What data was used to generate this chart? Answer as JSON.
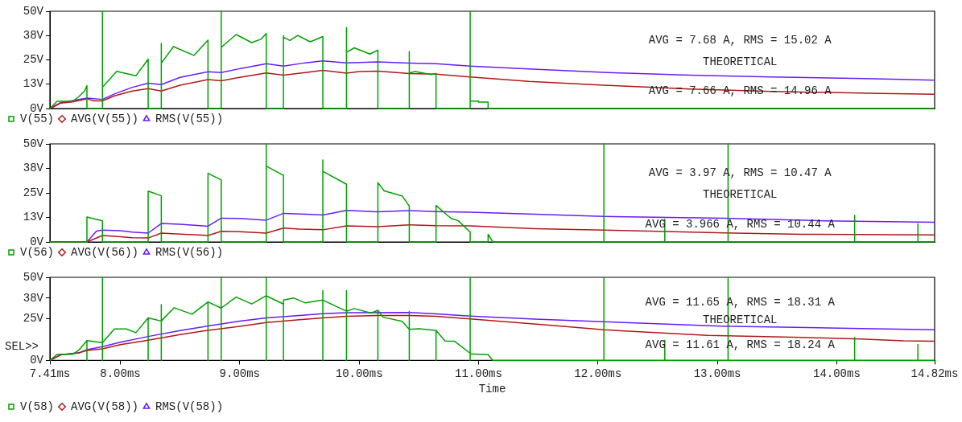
{
  "chart_data": [
    {
      "type": "line",
      "xlim": [
        7.41,
        14.82
      ],
      "ylim": [
        0,
        50
      ],
      "yticks": [
        {
          "value": 0,
          "label": "0V"
        },
        {
          "value": 12.5,
          "label": "13V"
        },
        {
          "value": 25,
          "label": "25V"
        },
        {
          "value": 37.5,
          "label": "38V"
        },
        {
          "value": 50,
          "label": "50V"
        }
      ],
      "tick_labels": "y",
      "grid": false,
      "legend": "bottom",
      "marker": "none",
      "annotations": [
        "AVG = 7.68 A, RMS = 15.02 A",
        "THEORETICAL",
        "AVG = 7.66 A, RMS = 14.96 A"
      ],
      "series": [
        {
          "name": "V(55)",
          "color": "#00a000",
          "x": [
            7.41,
            7.47,
            7.6,
            7.65,
            7.7,
            7.72,
            7.72,
            7.85,
            7.85,
            7.85,
            7.97,
            8.13,
            8.233,
            8.233,
            8.343,
            8.343,
            8.343,
            8.445,
            8.615,
            8.734,
            8.734,
            8.845,
            8.845,
            8.845,
            8.97,
            9.1,
            9.18,
            9.222,
            9.222,
            9.366,
            9.366,
            9.366,
            9.42,
            9.485,
            9.59,
            9.696,
            9.696,
            9.894,
            9.894,
            9.894,
            9.96,
            10.09,
            10.157,
            10.157,
            10.42,
            10.42,
            10.42,
            10.47,
            10.6,
            10.644,
            10.644,
            10.93,
            10.93,
            10.93,
            11.0,
            11.0,
            11.08,
            11.08,
            14.82
          ],
          "values": [
            0,
            3.7,
            3.7,
            6,
            9,
            11.8,
            0,
            0,
            50,
            10.9,
            19.1,
            16.8,
            25.3,
            0,
            0,
            33.5,
            23.3,
            31.8,
            27.3,
            35.1,
            0,
            0,
            50,
            31.5,
            38,
            33.9,
            35.7,
            38.5,
            0,
            0,
            37.5,
            36.7,
            35,
            37.6,
            34.3,
            37,
            0,
            0,
            41.6,
            28.9,
            31.2,
            28,
            30,
            0,
            0,
            29.2,
            18.3,
            19,
            17.5,
            18,
            0,
            0,
            50,
            3.8,
            3.8,
            3.3,
            3.3,
            0,
            0
          ]
        },
        {
          "name": "AVG(V(55))",
          "color": "#b01818",
          "x": [
            7.41,
            7.5,
            7.6,
            7.72,
            7.78,
            7.85,
            7.95,
            8.1,
            8.233,
            8.343,
            8.5,
            8.734,
            8.845,
            9.0,
            9.222,
            9.366,
            9.55,
            9.696,
            9.894,
            10.0,
            10.157,
            10.42,
            10.644,
            10.93,
            11.42,
            12.08,
            12.77,
            13.45,
            14.37,
            14.82
          ],
          "values": [
            0,
            2.8,
            3.4,
            5,
            3.9,
            3.9,
            6.5,
            9,
            10.2,
            9,
            12,
            14.9,
            14.3,
            16,
            18.3,
            17.1,
            18.5,
            19.6,
            18.2,
            19,
            19.2,
            18,
            17.7,
            16.2,
            13.9,
            11.9,
            10,
            8.8,
            7.7,
            7.3
          ]
        },
        {
          "name": "RMS(V(55))",
          "color": "#6a1aff",
          "x": [
            7.41,
            7.5,
            7.72,
            7.85,
            7.95,
            8.1,
            8.233,
            8.343,
            8.5,
            8.734,
            8.845,
            9.0,
            9.222,
            9.366,
            9.55,
            9.696,
            9.894,
            10.157,
            10.42,
            10.644,
            10.93,
            11.42,
            12.08,
            12.77,
            13.45,
            14.24,
            14.82
          ],
          "values": [
            0,
            3,
            5.4,
            4.7,
            7.5,
            10.9,
            13,
            12.3,
            16,
            18.9,
            18.5,
            20.5,
            23,
            21.8,
            23.5,
            24.5,
            23.5,
            24,
            23.3,
            23,
            21.8,
            20.3,
            18.5,
            17.2,
            16.2,
            15.4,
            14.6
          ]
        }
      ]
    },
    {
      "type": "line",
      "xlim": [
        7.41,
        14.82
      ],
      "ylim": [
        0,
        50
      ],
      "yticks": [
        {
          "value": 0,
          "label": "0V"
        },
        {
          "value": 12.5,
          "label": "13V"
        },
        {
          "value": 25,
          "label": "25V"
        },
        {
          "value": 37.5,
          "label": "38V"
        },
        {
          "value": 50,
          "label": "50V"
        }
      ],
      "tick_labels": "y",
      "grid": false,
      "legend": "bottom",
      "marker": "none",
      "annotations": [
        "AVG = 3.97 A, RMS = 10.47 A",
        "THEORETICAL",
        "AVG = 3.966 A, RMS = 10.44 A"
      ],
      "series": [
        {
          "name": "V(56)",
          "color": "#00a000",
          "x": [
            7.41,
            7.72,
            7.72,
            7.85,
            7.85,
            8.233,
            8.233,
            8.343,
            8.343,
            8.734,
            8.734,
            8.845,
            8.845,
            9.222,
            9.222,
            9.222,
            9.366,
            9.366,
            9.696,
            9.696,
            9.696,
            9.894,
            9.894,
            10.157,
            10.157,
            10.21,
            10.36,
            10.42,
            10.42,
            10.644,
            10.644,
            10.77,
            10.83,
            10.93,
            10.93,
            11.08,
            11.08,
            11.12,
            12.05,
            12.05,
            12.05,
            12.56,
            12.56,
            12.56,
            13.09,
            13.09,
            13.09,
            14.15,
            14.15,
            14.15,
            14.68,
            14.68,
            14.68,
            14.82
          ],
          "values": [
            0,
            0,
            12.7,
            10.8,
            0,
            0,
            25.9,
            23.5,
            0,
            0,
            35,
            31.6,
            0,
            0,
            50,
            38.7,
            34,
            0,
            0,
            41.8,
            36,
            29.4,
            0,
            0,
            30.2,
            26,
            23.5,
            18.3,
            0,
            0,
            18.6,
            12,
            10.8,
            5,
            0,
            0,
            3.9,
            0,
            0,
            50,
            0,
            0,
            11.6,
            0,
            0,
            50,
            0,
            0,
            13.6,
            0,
            0,
            9.3,
            0,
            0
          ]
        },
        {
          "name": "AVG(V(56))",
          "color": "#b01818",
          "x": [
            7.41,
            7.72,
            7.85,
            8.0,
            8.1,
            8.233,
            8.343,
            8.5,
            8.734,
            8.845,
            9.0,
            9.222,
            9.366,
            9.5,
            9.696,
            9.894,
            10.157,
            10.42,
            10.644,
            10.93,
            11.47,
            12.13,
            13.06,
            13.71,
            14.82
          ],
          "values": [
            0,
            0,
            3.3,
            2.7,
            2.2,
            2,
            4.5,
            4,
            3.3,
            5.4,
            5.2,
            4.5,
            7.1,
            6.6,
            6.2,
            8.2,
            7.8,
            8.7,
            8.3,
            8.2,
            6.8,
            5.9,
            4.6,
            3.9,
            3.6
          ]
        },
        {
          "name": "RMS(V(56))",
          "color": "#6a1aff",
          "x": [
            7.41,
            7.72,
            7.8,
            7.85,
            8.0,
            8.1,
            8.233,
            8.343,
            8.5,
            8.734,
            8.845,
            9.0,
            9.222,
            9.366,
            9.6,
            9.696,
            9.894,
            10.157,
            10.42,
            10.644,
            10.93,
            11.42,
            12.05,
            13.06,
            13.89,
            14.82
          ],
          "values": [
            0,
            0,
            5.5,
            6,
            5.7,
            5,
            4.5,
            9.4,
            9,
            8,
            12.1,
            12,
            11.1,
            14.6,
            14,
            13.7,
            16.1,
            15.4,
            16,
            15.5,
            15.2,
            14.2,
            13,
            12.1,
            10.8,
            10
          ]
        }
      ]
    },
    {
      "type": "line",
      "xlim": [
        7.41,
        14.82
      ],
      "ylim": [
        0,
        50
      ],
      "yticks": [
        {
          "value": 0,
          "label": "0V"
        },
        {
          "value": 25,
          "label": "25V"
        },
        {
          "value": 37.5,
          "label": "38V"
        },
        {
          "value": 50,
          "label": "50V"
        }
      ],
      "xticks": [
        {
          "value": 7.41,
          "label": "7.41ms"
        },
        {
          "value": 8,
          "label": "8.00ms"
        },
        {
          "value": 9,
          "label": "9.00ms"
        },
        {
          "value": 10,
          "label": "10.00ms"
        },
        {
          "value": 11,
          "label": "11.00ms"
        },
        {
          "value": 12,
          "label": "12.00ms"
        },
        {
          "value": 13,
          "label": "13.00ms"
        },
        {
          "value": 14,
          "label": "14.00ms"
        },
        {
          "value": 14.82,
          "label": "14.82ms"
        }
      ],
      "xlabel": "Time",
      "grid": false,
      "legend": "bottom",
      "marker": "none",
      "annotations": [
        "AVG = 11.65 A, RMS = 18.31 A",
        "THEORETICAL",
        "AVG = 11.61 A, RMS = 18.24 A",
        "SEL>>"
      ],
      "series": [
        {
          "name": "V(58)",
          "color": "#00a000",
          "x": [
            7.41,
            7.47,
            7.6,
            7.65,
            7.72,
            7.72,
            7.72,
            7.85,
            7.85,
            7.85,
            7.85,
            7.95,
            8.05,
            8.13,
            8.233,
            8.233,
            8.233,
            8.343,
            8.343,
            8.343,
            8.343,
            8.45,
            8.6,
            8.734,
            8.734,
            8.734,
            8.845,
            8.845,
            8.845,
            8.845,
            8.97,
            9.1,
            9.222,
            9.222,
            9.222,
            9.222,
            9.366,
            9.366,
            9.366,
            9.45,
            9.55,
            9.696,
            9.696,
            9.696,
            9.696,
            9.894,
            9.894,
            9.894,
            9.894,
            9.96,
            10.1,
            10.157,
            10.157,
            10.157,
            10.2,
            10.36,
            10.42,
            10.42,
            10.42,
            10.42,
            10.5,
            10.644,
            10.644,
            10.644,
            10.72,
            10.8,
            10.93,
            10.93,
            10.93,
            10.93,
            11.08,
            11.12,
            12.05,
            12.05,
            12.05,
            12.56,
            12.56,
            12.56,
            13.09,
            13.09,
            13.09,
            14.15,
            14.15,
            14.15,
            14.68,
            14.68,
            14.68,
            14.82
          ],
          "values": [
            0,
            3.7,
            3.7,
            6,
            11.9,
            0,
            11.9,
            10.7,
            0,
            50,
            10.7,
            18.9,
            18.9,
            16.7,
            25.6,
            0,
            25.6,
            23.7,
            0,
            33.5,
            23.7,
            31.7,
            27.8,
            35.2,
            0,
            35.2,
            31.5,
            0,
            50,
            31.5,
            38.1,
            34,
            38.9,
            0,
            50,
            38.9,
            33.9,
            0,
            36.3,
            37.6,
            34.6,
            36.3,
            0,
            42,
            36.3,
            29.6,
            0,
            42,
            29.6,
            31.2,
            28.5,
            30.2,
            0,
            30.2,
            26,
            23.5,
            18.7,
            0,
            29.6,
            18.7,
            19,
            18.1,
            0,
            18.1,
            11.7,
            11.5,
            4.3,
            0,
            50,
            4,
            3.5,
            0,
            0,
            50,
            0,
            0,
            12,
            0,
            0,
            50,
            0,
            0,
            13.8,
            0,
            0,
            9.6,
            0,
            0
          ]
        },
        {
          "name": "AVG(V(58))",
          "color": "#b01818",
          "x": [
            7.41,
            7.5,
            7.65,
            7.72,
            7.85,
            8.0,
            8.233,
            8.5,
            8.734,
            9.0,
            9.222,
            9.5,
            9.696,
            9.894,
            10.157,
            10.42,
            10.644,
            10.93,
            11.61,
            12.05,
            12.92,
            13.71,
            14.2,
            14.56,
            14.82
          ],
          "values": [
            0,
            3.3,
            4.5,
            6,
            7,
            9.5,
            12.2,
            15.5,
            18.1,
            20.5,
            22.8,
            24.5,
            25.6,
            26.5,
            27,
            27,
            26.5,
            25,
            21.1,
            18.4,
            15.1,
            13.8,
            12.9,
            11.8,
            11.6
          ]
        },
        {
          "name": "RMS(V(58))",
          "color": "#6a1aff",
          "x": [
            7.41,
            7.5,
            7.65,
            7.72,
            7.85,
            8.0,
            8.233,
            8.5,
            8.734,
            9.0,
            9.222,
            9.5,
            9.696,
            9.894,
            10.42,
            10.644,
            10.93,
            11.47,
            12.05,
            13.03,
            14.11,
            14.82
          ],
          "values": [
            0,
            3.5,
            4.5,
            6.5,
            8.3,
            11,
            14.4,
            18,
            20.7,
            23.7,
            25.6,
            27,
            28.1,
            28.7,
            28.8,
            28,
            26.7,
            24.8,
            23.3,
            20.6,
            19.3,
            18.4
          ]
        }
      ]
    }
  ]
}
